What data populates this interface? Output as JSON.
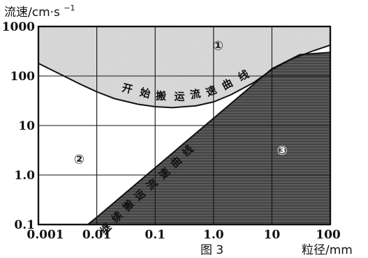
{
  "chart_data": {
    "type": "area",
    "title": "",
    "caption": "图 3",
    "ylabel_prefix": "流速/cm·s",
    "ylabel_superscript": "−1",
    "xlabel": "粒径/mm",
    "x_scale": "log",
    "y_scale": "log",
    "xlim": [
      0.001,
      100
    ],
    "ylim": [
      0.1,
      1000
    ],
    "x_ticks": [
      "0.001",
      "0.01",
      "0.1",
      "1.0",
      "10",
      "100"
    ],
    "y_ticks": [
      "1000",
      "100",
      "10",
      "1.0",
      "0.1"
    ],
    "grid": true,
    "series": [
      {
        "name": "开始搬运流速曲线",
        "x": [
          0.001,
          0.002,
          0.005,
          0.01,
          0.02,
          0.05,
          0.1,
          0.2,
          0.5,
          1,
          2,
          5,
          10,
          20,
          50,
          100
        ],
        "y": [
          180,
          120,
          70,
          48,
          35,
          27,
          24,
          23,
          25,
          30,
          42,
          75,
          135,
          210,
          320,
          420
        ]
      },
      {
        "name": "继续搬运流速曲线",
        "x": [
          0.007,
          0.01,
          0.1,
          1,
          10,
          30,
          100
        ],
        "y": [
          0.1,
          0.14,
          1.4,
          14,
          140,
          270,
          300
        ]
      }
    ],
    "regions": [
      {
        "label": "①",
        "x": 1.2,
        "y": 400
      },
      {
        "label": "②",
        "x": 0.005,
        "y": 2
      },
      {
        "label": "③",
        "x": 15,
        "y": 3
      }
    ],
    "colors": {
      "upper_region": "#d9d9d9",
      "lower_region": "#555555",
      "grid": "#111111"
    }
  }
}
